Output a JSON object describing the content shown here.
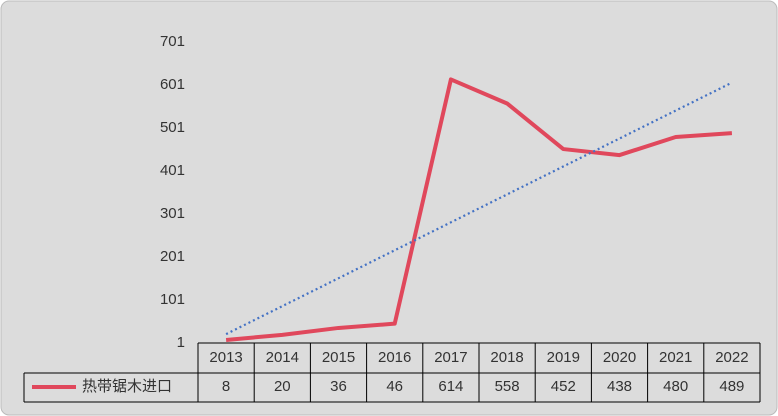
{
  "chart_data": {
    "type": "line",
    "categories": [
      "2013",
      "2014",
      "2015",
      "2016",
      "2017",
      "2018",
      "2019",
      "2020",
      "2021",
      "2022"
    ],
    "series": [
      {
        "name": "热带锯木进口",
        "color": "#e0485c",
        "values": [
          8,
          20,
          36,
          46,
          614,
          558,
          452,
          438,
          480,
          489
        ]
      }
    ],
    "ylim": [
      1,
      701
    ],
    "yticks": [
      1,
      101,
      201,
      301,
      401,
      501,
      601,
      701
    ],
    "grid": false,
    "trendline": "linear",
    "trendline_color": "#4472c4",
    "data_table": true
  }
}
